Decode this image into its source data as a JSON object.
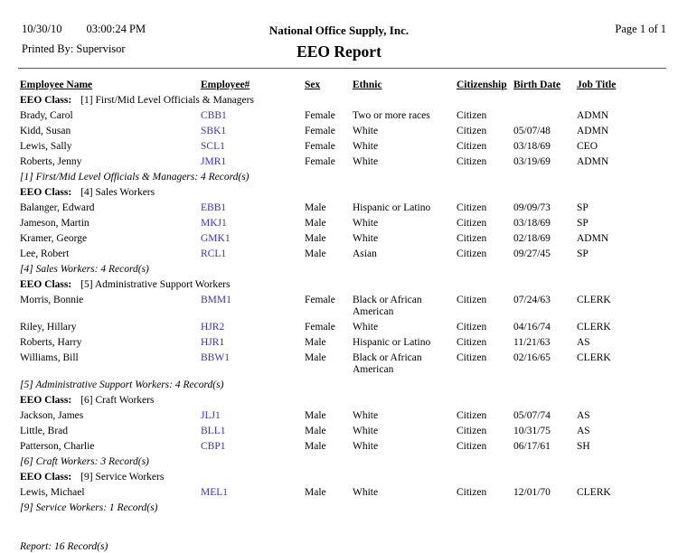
{
  "header": {
    "date": "10/30/10",
    "time": "03:00:24 PM",
    "printed_by_label": "Printed By:",
    "printed_by": "Supervisor",
    "company": "National Office Supply, Inc.",
    "report_title": "EEO Report",
    "page": "Page 1 of 1"
  },
  "table": {
    "columns": [
      "Employee Name",
      "Employee#",
      "Sex",
      "Ethnic",
      "Citizenship",
      "Birth Date",
      "Job Title"
    ],
    "eeo_class_label": "EEO Class:",
    "groups": [
      {
        "class_name": "[1] First/Mid Level Officials & Managers",
        "rows": [
          {
            "name": "Brady, Carol",
            "number": "CBB1",
            "sex": "Female",
            "ethnic": "Two or more races",
            "citizenship": "Citizen",
            "birth_date": "",
            "job_title": "ADMN"
          },
          {
            "name": "Kidd, Susan",
            "number": "SBK1",
            "sex": "Female",
            "ethnic": "White",
            "citizenship": "Citizen",
            "birth_date": "05/07/48",
            "job_title": "ADMN"
          },
          {
            "name": "Lewis, Sally",
            "number": "SCL1",
            "sex": "Female",
            "ethnic": "White",
            "citizenship": "Citizen",
            "birth_date": "03/18/69",
            "job_title": "CEO"
          },
          {
            "name": "Roberts, Jenny",
            "number": "JMR1",
            "sex": "Female",
            "ethnic": "White",
            "citizenship": "Citizen",
            "birth_date": "03/19/69",
            "job_title": "ADMN"
          }
        ],
        "summary": "[1] First/Mid Level Officials & Managers: 4 Record(s)"
      },
      {
        "class_name": "[4] Sales Workers",
        "rows": [
          {
            "name": "Balanger, Edward",
            "number": "EBB1",
            "sex": "Male",
            "ethnic": "Hispanic or Latino",
            "citizenship": "Citizen",
            "birth_date": "09/09/73",
            "job_title": "SP"
          },
          {
            "name": "Jameson, Martin",
            "number": "MKJ1",
            "sex": "Male",
            "ethnic": "White",
            "citizenship": "Citizen",
            "birth_date": "03/18/69",
            "job_title": "SP"
          },
          {
            "name": "Kramer, George",
            "number": "GMK1",
            "sex": "Male",
            "ethnic": "White",
            "citizenship": "Citizen",
            "birth_date": "02/18/69",
            "job_title": "ADMN"
          },
          {
            "name": "Lee, Robert",
            "number": "RCL1",
            "sex": "Male",
            "ethnic": "Asian",
            "citizenship": "Citizen",
            "birth_date": "09/27/45",
            "job_title": "SP"
          }
        ],
        "summary": "[4] Sales Workers: 4 Record(s)"
      },
      {
        "class_name": "[5] Administrative Support Workers",
        "rows": [
          {
            "name": "Morris, Bonnie",
            "number": "BMM1",
            "sex": "Female",
            "ethnic": "Black or African American",
            "citizenship": "Citizen",
            "birth_date": "07/24/63",
            "job_title": "CLERK"
          },
          {
            "name": "Riley, Hillary",
            "number": "HJR2",
            "sex": "Female",
            "ethnic": "White",
            "citizenship": "Citizen",
            "birth_date": "04/16/74",
            "job_title": "CLERK"
          },
          {
            "name": "Roberts, Harry",
            "number": "HJR1",
            "sex": "Male",
            "ethnic": "Hispanic or Latino",
            "citizenship": "Citizen",
            "birth_date": "11/21/63",
            "job_title": "AS"
          },
          {
            "name": "Williams, Bill",
            "number": "BBW1",
            "sex": "Male",
            "ethnic": "Black or African American",
            "citizenship": "Citizen",
            "birth_date": "02/16/65",
            "job_title": "CLERK"
          }
        ],
        "summary": "[5] Administrative Support Workers: 4 Record(s)"
      },
      {
        "class_name": "[6] Craft Workers",
        "rows": [
          {
            "name": "Jackson, James",
            "number": "JLJ1",
            "sex": "Male",
            "ethnic": "White",
            "citizenship": "Citizen",
            "birth_date": "05/07/74",
            "job_title": "AS"
          },
          {
            "name": "Little, Brad",
            "number": "BLL1",
            "sex": "Male",
            "ethnic": "White",
            "citizenship": "Citizen",
            "birth_date": "10/31/75",
            "job_title": "AS"
          },
          {
            "name": "Patterson, Charlie",
            "number": "CBP1",
            "sex": "Male",
            "ethnic": "White",
            "citizenship": "Citizen",
            "birth_date": "06/17/61",
            "job_title": "SH"
          }
        ],
        "summary": "[6] Craft Workers: 3 Record(s)"
      },
      {
        "class_name": "[9] Service Workers",
        "rows": [
          {
            "name": "Lewis, Michael",
            "number": "MEL1",
            "sex": "Male",
            "ethnic": "White",
            "citizenship": "Citizen",
            "birth_date": "12/01/70",
            "job_title": "CLERK"
          }
        ],
        "summary": "[9] Service Workers: 1 Record(s)"
      }
    ],
    "report_summary": "Report: 16 Record(s)"
  },
  "colors": {
    "background": "#FFFFFF",
    "text": "#000000",
    "link_blue": "#3333CC",
    "divider": "#555555"
  }
}
